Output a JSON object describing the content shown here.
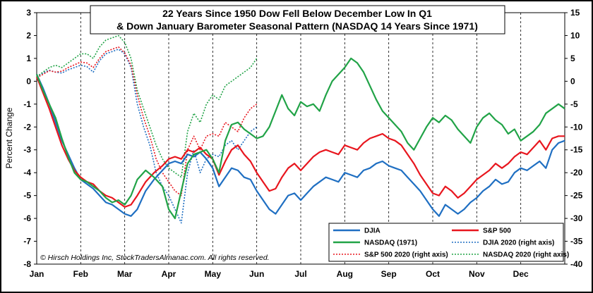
{
  "chart_data": {
    "type": "line",
    "title_line1": "22 Years Since 1950 Dow Fell Below December Low In Q1",
    "title_line2": "& Down January Barometer Seasonal Pattern (NASDAQ 14 Years Since 1971)",
    "ylabel": "Percent Change",
    "copyright": "© Hirsch Holdings Inc, StockTradersAlmanac.com. All rights reserved.",
    "ylim_left": [
      -8,
      3
    ],
    "ylim_right": [
      -40,
      15
    ],
    "y_left_ticks": [
      "3",
      "2",
      "1",
      "0",
      "-1",
      "-2",
      "-3",
      "-4",
      "-5",
      "-6",
      "-7",
      "-8"
    ],
    "y_right_ticks": [
      "15",
      "10",
      "5",
      "0",
      "-5",
      "-10",
      "-15",
      "-20",
      "-25",
      "-30",
      "-35",
      "-40"
    ],
    "months": [
      "Jan",
      "Feb",
      "Mar",
      "Apr",
      "May",
      "Jun",
      "Jul",
      "Aug",
      "Sep",
      "Oct",
      "Nov",
      "Dec"
    ],
    "x_range_days": [
      0,
      252
    ],
    "series": [
      {
        "name": "DJIA",
        "label": "DJIA",
        "color": "#1f6fc2",
        "style": "solid",
        "axis": "left",
        "x": [
          0,
          3,
          6,
          9,
          12,
          15,
          18,
          21,
          24,
          27,
          30,
          33,
          36,
          39,
          42,
          45,
          48,
          52,
          56,
          60,
          63,
          66,
          69,
          72,
          75,
          78,
          81,
          84,
          87,
          90,
          93,
          96,
          99,
          102,
          105,
          108,
          111,
          114,
          117,
          120,
          123,
          126,
          129,
          132,
          135,
          138,
          141,
          144,
          147,
          150,
          153,
          156,
          159,
          162,
          165,
          168,
          171,
          174,
          177,
          180,
          183,
          186,
          189,
          192,
          195,
          198,
          201,
          204,
          207,
          210,
          213,
          216,
          219,
          222,
          225,
          228,
          231,
          234,
          237,
          240,
          243,
          246,
          249,
          252
        ],
        "y": [
          0.3,
          -0.3,
          -1.0,
          -1.8,
          -2.6,
          -3.2,
          -3.8,
          -4.3,
          -4.5,
          -4.7,
          -5.0,
          -5.3,
          -5.4,
          -5.6,
          -5.8,
          -5.9,
          -5.6,
          -4.8,
          -4.3,
          -3.9,
          -3.6,
          -3.5,
          -3.6,
          -3.2,
          -3.3,
          -3.1,
          -3.4,
          -3.8,
          -4.6,
          -4.2,
          -3.8,
          -3.9,
          -4.2,
          -4.3,
          -4.8,
          -5.2,
          -5.6,
          -5.8,
          -5.4,
          -5.0,
          -4.9,
          -5.2,
          -4.9,
          -4.6,
          -4.4,
          -4.2,
          -4.3,
          -4.4,
          -4.0,
          -4.1,
          -4.2,
          -3.9,
          -3.8,
          -3.6,
          -3.5,
          -3.7,
          -3.8,
          -3.9,
          -4.2,
          -4.5,
          -4.8,
          -5.2,
          -5.6,
          -5.9,
          -5.4,
          -5.6,
          -5.8,
          -5.6,
          -5.3,
          -5.1,
          -4.8,
          -4.6,
          -4.3,
          -4.5,
          -4.4,
          -4.0,
          -3.8,
          -3.9,
          -3.7,
          -3.5,
          -3.8,
          -3.0,
          -2.7,
          -2.6
        ]
      },
      {
        "name": "S&P 500",
        "label": "S&P 500",
        "color": "#e8161e",
        "style": "solid",
        "axis": "left",
        "x": [
          0,
          3,
          6,
          9,
          12,
          15,
          18,
          21,
          24,
          27,
          30,
          33,
          36,
          39,
          42,
          45,
          48,
          52,
          56,
          60,
          63,
          66,
          69,
          72,
          75,
          78,
          81,
          84,
          87,
          90,
          93,
          96,
          99,
          102,
          105,
          108,
          111,
          114,
          117,
          120,
          123,
          126,
          129,
          132,
          135,
          138,
          141,
          144,
          147,
          150,
          153,
          156,
          159,
          162,
          165,
          168,
          171,
          174,
          177,
          180,
          183,
          186,
          189,
          192,
          195,
          198,
          201,
          204,
          207,
          210,
          213,
          216,
          219,
          222,
          225,
          228,
          231,
          234,
          237,
          240,
          243,
          246,
          249,
          252
        ],
        "y": [
          0.2,
          -0.5,
          -1.2,
          -2.0,
          -2.8,
          -3.4,
          -3.9,
          -4.2,
          -4.4,
          -4.5,
          -4.8,
          -5.0,
          -5.1,
          -5.3,
          -5.5,
          -5.4,
          -5.0,
          -4.4,
          -4.0,
          -3.7,
          -3.4,
          -3.3,
          -3.4,
          -3.0,
          -3.1,
          -2.9,
          -3.2,
          -3.4,
          -4.1,
          -3.5,
          -3.0,
          -2.8,
          -3.2,
          -3.5,
          -4.0,
          -4.4,
          -4.8,
          -4.7,
          -4.2,
          -3.8,
          -3.6,
          -3.9,
          -3.6,
          -3.3,
          -3.1,
          -3.0,
          -3.1,
          -3.2,
          -2.8,
          -2.9,
          -3.0,
          -2.7,
          -2.5,
          -2.4,
          -2.3,
          -2.5,
          -2.6,
          -2.8,
          -3.2,
          -3.6,
          -4.1,
          -4.5,
          -4.9,
          -5.0,
          -4.6,
          -4.8,
          -5.1,
          -4.9,
          -4.6,
          -4.3,
          -4.1,
          -3.9,
          -3.6,
          -3.8,
          -3.6,
          -3.3,
          -3.1,
          -3.2,
          -2.9,
          -2.6,
          -3.0,
          -2.5,
          -2.4,
          -2.4
        ]
      },
      {
        "name": "NASDAQ (1971)",
        "label": "NASDAQ (1971)",
        "color": "#21a347",
        "style": "solid",
        "axis": "left",
        "x": [
          0,
          3,
          6,
          9,
          12,
          15,
          18,
          21,
          24,
          27,
          30,
          33,
          36,
          39,
          42,
          45,
          48,
          52,
          56,
          60,
          63,
          66,
          69,
          72,
          75,
          78,
          81,
          84,
          87,
          90,
          93,
          96,
          99,
          102,
          105,
          108,
          111,
          114,
          117,
          120,
          123,
          126,
          129,
          132,
          135,
          138,
          141,
          144,
          147,
          150,
          153,
          156,
          159,
          162,
          165,
          168,
          171,
          174,
          177,
          180,
          183,
          186,
          189,
          192,
          195,
          198,
          201,
          204,
          207,
          210,
          213,
          216,
          219,
          222,
          225,
          228,
          231,
          234,
          237,
          240,
          243,
          246,
          249,
          252
        ],
        "y": [
          0.3,
          -0.4,
          -1.0,
          -1.6,
          -2.5,
          -3.3,
          -4.0,
          -4.3,
          -4.4,
          -4.6,
          -4.8,
          -5.1,
          -5.3,
          -5.2,
          -5.4,
          -5.0,
          -4.3,
          -3.9,
          -4.2,
          -4.6,
          -5.6,
          -6.0,
          -4.8,
          -3.6,
          -3.2,
          -3.1,
          -3.0,
          -3.4,
          -4.0,
          -2.6,
          -1.9,
          -1.8,
          -2.1,
          -2.3,
          -2.5,
          -2.4,
          -2.0,
          -1.3,
          -0.6,
          -1.2,
          -1.5,
          -0.9,
          -1.1,
          -1.0,
          -1.3,
          -0.6,
          0.0,
          0.3,
          0.6,
          1.0,
          0.8,
          0.4,
          -0.2,
          -0.8,
          -1.3,
          -1.6,
          -1.9,
          -2.2,
          -2.7,
          -3.0,
          -2.5,
          -2.0,
          -1.6,
          -1.8,
          -1.5,
          -1.7,
          -2.1,
          -2.4,
          -2.7,
          -2.0,
          -1.6,
          -1.4,
          -1.7,
          -1.9,
          -2.3,
          -2.1,
          -2.6,
          -2.4,
          -2.2,
          -1.9,
          -1.4,
          -1.2,
          -1.0,
          -1.2
        ]
      },
      {
        "name": "DJIA 2020 (right axis)",
        "label": "DJIA 2020 (right axis)",
        "color": "#1f6fc2",
        "style": "dotted",
        "axis": "right",
        "x": [
          0,
          3,
          6,
          9,
          12,
          15,
          18,
          21,
          24,
          27,
          30,
          33,
          36,
          39,
          42,
          45,
          48,
          51,
          54,
          57,
          60,
          63,
          66,
          69,
          72,
          75,
          78,
          81,
          84,
          87,
          90,
          93,
          96,
          99,
          102,
          105
        ],
        "y": [
          1.0,
          1.8,
          2.4,
          2.0,
          1.8,
          2.5,
          3.0,
          3.5,
          3.2,
          2.0,
          4.5,
          6.0,
          6.5,
          7.0,
          6.0,
          3.0,
          -5.0,
          -10.0,
          -14.0,
          -20.0,
          -23.0,
          -25.0,
          -28.0,
          -31.0,
          -20.0,
          -15.0,
          -20.0,
          -17.0,
          -16.0,
          -16.5,
          -14.0,
          -13.0,
          -15.0,
          -13.0,
          -11.0,
          -10.0
        ]
      },
      {
        "name": "S&P 500 2020 (right axis)",
        "label": "S&P 500 2020 (right axis)",
        "color": "#e8161e",
        "style": "dotted",
        "axis": "right",
        "x": [
          0,
          3,
          6,
          9,
          12,
          15,
          18,
          21,
          24,
          27,
          30,
          33,
          36,
          39,
          42,
          45,
          48,
          51,
          54,
          57,
          60,
          63,
          66,
          69,
          72,
          75,
          78,
          81,
          84,
          87,
          90,
          93,
          96,
          99,
          102,
          105
        ],
        "y": [
          0.8,
          1.5,
          2.3,
          2.0,
          2.2,
          3.0,
          3.6,
          4.2,
          4.0,
          3.0,
          5.0,
          6.5,
          7.0,
          7.5,
          6.2,
          3.5,
          -3.0,
          -8.0,
          -12.0,
          -17.0,
          -20.0,
          -22.0,
          -24.0,
          -25.0,
          -15.0,
          -12.0,
          -15.0,
          -12.0,
          -11.5,
          -12.0,
          -9.0,
          -10.0,
          -11.0,
          -8.0,
          -6.0,
          -5.0
        ]
      },
      {
        "name": "NASDAQ 2020 (right axis)",
        "label": "NASDAQ 2020 (right axis)",
        "color": "#21a347",
        "style": "dotted",
        "axis": "right",
        "x": [
          0,
          3,
          6,
          9,
          12,
          15,
          18,
          21,
          24,
          27,
          30,
          33,
          36,
          39,
          42,
          45,
          48,
          51,
          54,
          57,
          60,
          63,
          66,
          69,
          72,
          75,
          78,
          81,
          84,
          87,
          90,
          93,
          96,
          99,
          102,
          105
        ],
        "y": [
          1.0,
          2.0,
          3.0,
          3.5,
          3.0,
          4.0,
          5.0,
          6.0,
          6.0,
          5.0,
          7.5,
          9.0,
          9.5,
          10.0,
          8.5,
          5.0,
          -2.0,
          -6.0,
          -10.0,
          -14.0,
          -17.0,
          -19.0,
          -20.0,
          -21.0,
          -11.0,
          -7.0,
          -9.0,
          -5.0,
          -3.0,
          -4.0,
          -1.0,
          0.0,
          1.0,
          2.0,
          3.0,
          5.0
        ]
      }
    ]
  }
}
